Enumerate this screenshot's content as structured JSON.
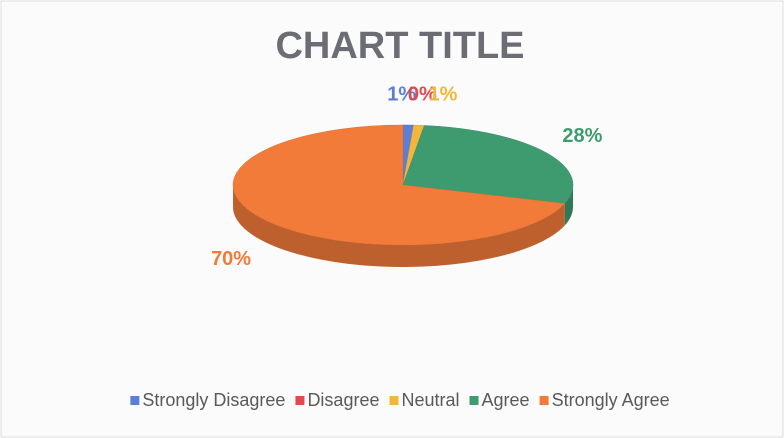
{
  "chart_data": {
    "type": "pie3d",
    "title": "CHART TITLE",
    "categories": [
      "Strongly Disagree",
      "Disagree",
      "Neutral",
      "Agree",
      "Strongly Agree"
    ],
    "values": [
      1,
      0,
      1,
      28,
      70
    ],
    "value_labels": [
      "1%",
      "0%",
      "1%",
      "28%",
      "70%"
    ],
    "colors": [
      "#5a7fd4",
      "#e04a50",
      "#f4b63a",
      "#3e9b70",
      "#f27b3a"
    ],
    "legend": "bottom"
  }
}
